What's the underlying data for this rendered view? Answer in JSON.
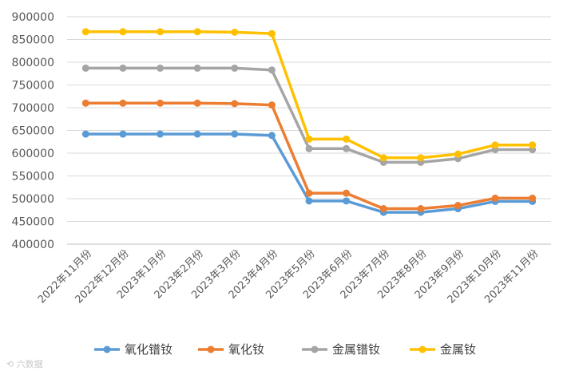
{
  "watermark": "⟲ 六数据",
  "chart_data": {
    "type": "line",
    "title": "",
    "xlabel": "",
    "ylabel": "",
    "ylim": [
      400000,
      900000
    ],
    "ytick_step": 50000,
    "grid": true,
    "legend_position": "bottom",
    "categories": [
      "2022年11月份",
      "2022年12月份",
      "2023年1月份",
      "2023年2月份",
      "2023年3月份",
      "2023年4月份",
      "2023年5月份",
      "2023年6月份",
      "2023年7月份",
      "2023年8月份",
      "2023年9月份",
      "2023年10月份",
      "2023年11月份"
    ],
    "series": [
      {
        "name": "氧化镨钕",
        "color": "#5b9bd5",
        "values": [
          642000,
          642000,
          642000,
          642000,
          642000,
          639000,
          495000,
          495000,
          470000,
          470000,
          478000,
          494000,
          494000
        ]
      },
      {
        "name": "氧化钕",
        "color": "#ed7d31",
        "values": [
          710000,
          710000,
          710000,
          710000,
          709000,
          706000,
          512000,
          512000,
          478000,
          478000,
          485000,
          501000,
          501000
        ]
      },
      {
        "name": "金属镨钕",
        "color": "#a5a5a5",
        "values": [
          787000,
          787000,
          787000,
          787000,
          787000,
          783000,
          610000,
          610000,
          580000,
          580000,
          588000,
          608000,
          608000
        ]
      },
      {
        "name": "金属钕",
        "color": "#ffc000",
        "values": [
          867000,
          867000,
          867000,
          867000,
          866000,
          863000,
          631000,
          631000,
          590000,
          590000,
          598000,
          618000,
          618000
        ]
      }
    ]
  }
}
